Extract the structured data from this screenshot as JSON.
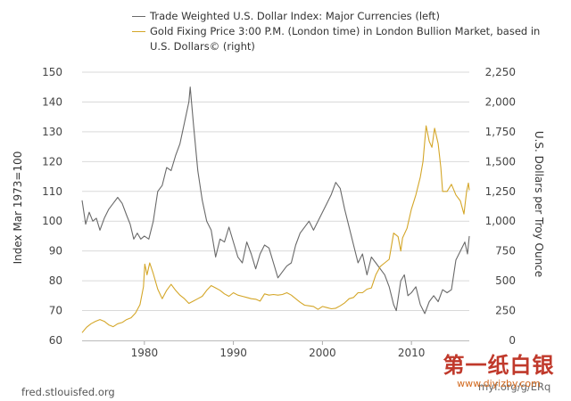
{
  "chart_data": {
    "type": "line",
    "title": "",
    "legend": [
      {
        "name": "Trade Weighted U.S. Dollar Index: Major Currencies (left)",
        "color": "#696969"
      },
      {
        "name": "Gold Fixing Price 3:00 P.M. (London time) in London Bullion Market, based in U.S. Dollars© (right)",
        "color": "#d4a628"
      }
    ],
    "xlabel": "",
    "ylabel_left": "Index Mar 1973=100",
    "ylabel_right": "U.S. Dollars per Troy Ounce",
    "xlim": [
      1973.0,
      2016.5
    ],
    "ylim_left": [
      60,
      150
    ],
    "ylim_right": [
      0,
      2250
    ],
    "x_ticks": [
      1980,
      1990,
      2000,
      2010
    ],
    "y_ticks_left": [
      60,
      70,
      80,
      90,
      100,
      110,
      120,
      130,
      140,
      150
    ],
    "y_ticks_right": [
      {
        "value": 0,
        "label": "0"
      },
      {
        "value": 250,
        "label": "250"
      },
      {
        "value": 500,
        "label": "500"
      },
      {
        "value": 750,
        "label": "750"
      },
      {
        "value": 1000,
        "label": "1,000"
      },
      {
        "value": 1250,
        "label": "1,250"
      },
      {
        "value": 1500,
        "label": "1,500"
      },
      {
        "value": 1750,
        "label": "1,750"
      },
      {
        "value": 2000,
        "label": "2,000"
      },
      {
        "value": 2250,
        "label": "2,250"
      }
    ],
    "grid": true,
    "series": [
      {
        "name": "Trade Weighted U.S. Dollar Index: Major Currencies (left)",
        "axis": "left",
        "color": "#696969",
        "points": [
          [
            1973.0,
            107
          ],
          [
            1973.4,
            99
          ],
          [
            1973.8,
            103
          ],
          [
            1974.2,
            100
          ],
          [
            1974.6,
            101
          ],
          [
            1975.0,
            97
          ],
          [
            1975.5,
            101
          ],
          [
            1976.0,
            104
          ],
          [
            1976.5,
            106
          ],
          [
            1977.0,
            108
          ],
          [
            1977.5,
            106
          ],
          [
            1978.0,
            102
          ],
          [
            1978.4,
            99
          ],
          [
            1978.8,
            94
          ],
          [
            1979.2,
            96
          ],
          [
            1979.6,
            94
          ],
          [
            1980.0,
            95
          ],
          [
            1980.5,
            94
          ],
          [
            1981.0,
            100
          ],
          [
            1981.5,
            110
          ],
          [
            1982.0,
            112
          ],
          [
            1982.5,
            118
          ],
          [
            1983.0,
            117
          ],
          [
            1983.5,
            122
          ],
          [
            1984.0,
            126
          ],
          [
            1984.5,
            133
          ],
          [
            1985.0,
            140
          ],
          [
            1985.15,
            145
          ],
          [
            1985.5,
            133
          ],
          [
            1986.0,
            117
          ],
          [
            1986.5,
            107
          ],
          [
            1987.0,
            100
          ],
          [
            1987.5,
            97
          ],
          [
            1988.0,
            88
          ],
          [
            1988.5,
            94
          ],
          [
            1989.0,
            93
          ],
          [
            1989.5,
            98
          ],
          [
            1990.0,
            93
          ],
          [
            1990.5,
            88
          ],
          [
            1991.0,
            86
          ],
          [
            1991.5,
            93
          ],
          [
            1992.0,
            89
          ],
          [
            1992.5,
            84
          ],
          [
            1993.0,
            89
          ],
          [
            1993.5,
            92
          ],
          [
            1994.0,
            91
          ],
          [
            1994.5,
            86
          ],
          [
            1995.0,
            81
          ],
          [
            1995.5,
            83
          ],
          [
            1996.0,
            85
          ],
          [
            1996.5,
            86
          ],
          [
            1997.0,
            92
          ],
          [
            1997.5,
            96
          ],
          [
            1998.0,
            98
          ],
          [
            1998.5,
            100
          ],
          [
            1999.0,
            97
          ],
          [
            1999.5,
            100
          ],
          [
            2000.0,
            103
          ],
          [
            2000.5,
            106
          ],
          [
            2001.0,
            109
          ],
          [
            2001.5,
            113
          ],
          [
            2002.0,
            111
          ],
          [
            2002.5,
            104
          ],
          [
            2003.0,
            98
          ],
          [
            2003.5,
            92
          ],
          [
            2004.0,
            86
          ],
          [
            2004.5,
            89
          ],
          [
            2005.0,
            82
          ],
          [
            2005.5,
            88
          ],
          [
            2006.0,
            86
          ],
          [
            2006.5,
            84
          ],
          [
            2007.0,
            82
          ],
          [
            2007.5,
            78
          ],
          [
            2008.0,
            72
          ],
          [
            2008.3,
            70
          ],
          [
            2008.8,
            80
          ],
          [
            2009.2,
            82
          ],
          [
            2009.6,
            75
          ],
          [
            2010.0,
            76
          ],
          [
            2010.5,
            78
          ],
          [
            2011.0,
            72
          ],
          [
            2011.5,
            69
          ],
          [
            2012.0,
            73
          ],
          [
            2012.5,
            75
          ],
          [
            2013.0,
            73
          ],
          [
            2013.5,
            77
          ],
          [
            2014.0,
            76
          ],
          [
            2014.5,
            77
          ],
          [
            2015.0,
            87
          ],
          [
            2015.5,
            90
          ],
          [
            2016.0,
            93
          ],
          [
            2016.3,
            89
          ],
          [
            2016.5,
            95
          ]
        ]
      },
      {
        "name": "Gold Fixing Price 3:00 P.M. (London time) in London Bullion Market, based in U.S. Dollars© (right)",
        "axis": "right",
        "color": "#d4a628",
        "points": [
          [
            1973.0,
            65
          ],
          [
            1973.5,
            110
          ],
          [
            1974.0,
            140
          ],
          [
            1974.5,
            160
          ],
          [
            1975.0,
            175
          ],
          [
            1975.5,
            160
          ],
          [
            1976.0,
            130
          ],
          [
            1976.5,
            115
          ],
          [
            1977.0,
            140
          ],
          [
            1977.5,
            150
          ],
          [
            1978.0,
            175
          ],
          [
            1978.5,
            190
          ],
          [
            1979.0,
            230
          ],
          [
            1979.5,
            300
          ],
          [
            1979.9,
            450
          ],
          [
            1980.05,
            640
          ],
          [
            1980.3,
            550
          ],
          [
            1980.6,
            650
          ],
          [
            1981.0,
            560
          ],
          [
            1981.5,
            430
          ],
          [
            1982.0,
            350
          ],
          [
            1982.5,
            420
          ],
          [
            1983.0,
            470
          ],
          [
            1983.5,
            420
          ],
          [
            1984.0,
            380
          ],
          [
            1984.5,
            350
          ],
          [
            1985.0,
            310
          ],
          [
            1985.5,
            330
          ],
          [
            1986.0,
            350
          ],
          [
            1986.5,
            370
          ],
          [
            1987.0,
            420
          ],
          [
            1987.5,
            460
          ],
          [
            1988.0,
            440
          ],
          [
            1988.5,
            420
          ],
          [
            1989.0,
            390
          ],
          [
            1989.5,
            370
          ],
          [
            1990.0,
            400
          ],
          [
            1990.5,
            380
          ],
          [
            1991.0,
            370
          ],
          [
            1991.5,
            360
          ],
          [
            1992.0,
            350
          ],
          [
            1992.5,
            345
          ],
          [
            1993.0,
            330
          ],
          [
            1993.5,
            390
          ],
          [
            1994.0,
            380
          ],
          [
            1994.5,
            385
          ],
          [
            1995.0,
            380
          ],
          [
            1995.5,
            385
          ],
          [
            1996.0,
            400
          ],
          [
            1996.5,
            380
          ],
          [
            1997.0,
            350
          ],
          [
            1997.5,
            320
          ],
          [
            1998.0,
            295
          ],
          [
            1998.5,
            290
          ],
          [
            1999.0,
            285
          ],
          [
            1999.5,
            260
          ],
          [
            2000.0,
            285
          ],
          [
            2000.5,
            275
          ],
          [
            2001.0,
            265
          ],
          [
            2001.5,
            270
          ],
          [
            2002.0,
            290
          ],
          [
            2002.5,
            315
          ],
          [
            2003.0,
            350
          ],
          [
            2003.5,
            360
          ],
          [
            2004.0,
            400
          ],
          [
            2004.5,
            400
          ],
          [
            2005.0,
            430
          ],
          [
            2005.5,
            440
          ],
          [
            2006.0,
            550
          ],
          [
            2006.5,
            620
          ],
          [
            2007.0,
            650
          ],
          [
            2007.5,
            680
          ],
          [
            2008.0,
            900
          ],
          [
            2008.5,
            870
          ],
          [
            2008.8,
            750
          ],
          [
            2009.0,
            860
          ],
          [
            2009.5,
            940
          ],
          [
            2010.0,
            1100
          ],
          [
            2010.5,
            1220
          ],
          [
            2011.0,
            1370
          ],
          [
            2011.3,
            1500
          ],
          [
            2011.65,
            1800
          ],
          [
            2012.0,
            1670
          ],
          [
            2012.3,
            1620
          ],
          [
            2012.6,
            1780
          ],
          [
            2013.0,
            1650
          ],
          [
            2013.3,
            1450
          ],
          [
            2013.5,
            1250
          ],
          [
            2014.0,
            1250
          ],
          [
            2014.5,
            1310
          ],
          [
            2015.0,
            1220
          ],
          [
            2015.5,
            1170
          ],
          [
            2015.9,
            1060
          ],
          [
            2016.2,
            1250
          ],
          [
            2016.4,
            1320
          ],
          [
            2016.5,
            1260
          ]
        ]
      }
    ]
  },
  "footer": {
    "source": "fred.stlouisfed.org",
    "partial_text": "myf.org/g/ERq"
  },
  "watermark": {
    "title": "第一纸白银",
    "url": "www.diyizby.com"
  }
}
